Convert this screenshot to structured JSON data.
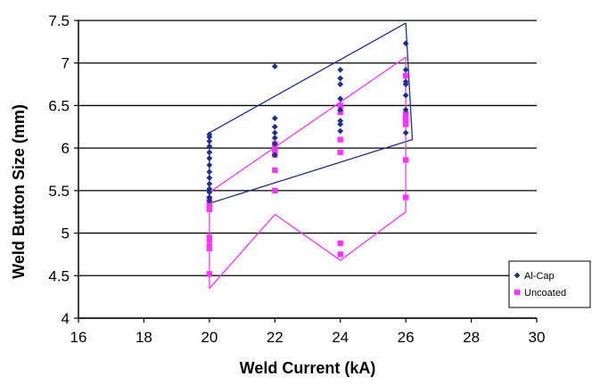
{
  "chart_data": {
    "type": "scatter",
    "xlabel": "Weld Current (kA)",
    "ylabel": "Weld Button Size (mm)",
    "xlim": [
      16,
      30
    ],
    "ylim": [
      4,
      7.5
    ],
    "x_ticks": [
      "16",
      "18",
      "20",
      "22",
      "24",
      "26",
      "28",
      "30"
    ],
    "y_ticks": [
      "4",
      "4.5",
      "5",
      "5.5",
      "6",
      "6.5",
      "7",
      "7.5"
    ],
    "grid": "horizontal",
    "legend_position": "bottom-right",
    "series": [
      {
        "name": "Al-Cap",
        "color": "#1f2f8f",
        "marker": "diamond",
        "points": [
          [
            20,
            5.38
          ],
          [
            20,
            5.42
          ],
          [
            20,
            5.48
          ],
          [
            20,
            5.52
          ],
          [
            20,
            5.58
          ],
          [
            20,
            5.65
          ],
          [
            20,
            5.72
          ],
          [
            20,
            5.8
          ],
          [
            20,
            5.88
          ],
          [
            20,
            5.95
          ],
          [
            20,
            6.02
          ],
          [
            20,
            6.08
          ],
          [
            20,
            6.13
          ],
          [
            20,
            6.16
          ],
          [
            22,
            5.92
          ],
          [
            22,
            6.05
          ],
          [
            22,
            6.12
          ],
          [
            22,
            6.18
          ],
          [
            22,
            6.25
          ],
          [
            22,
            6.35
          ],
          [
            22,
            6.96
          ],
          [
            24,
            6.2
          ],
          [
            24,
            6.28
          ],
          [
            24,
            6.32
          ],
          [
            24,
            6.45
          ],
          [
            24,
            6.58
          ],
          [
            24,
            6.75
          ],
          [
            24,
            6.82
          ],
          [
            24,
            6.92
          ],
          [
            26,
            6.18
          ],
          [
            26,
            6.45
          ],
          [
            26,
            6.62
          ],
          [
            26,
            6.75
          ],
          [
            26,
            6.78
          ],
          [
            26,
            6.92
          ],
          [
            26,
            7.23
          ]
        ],
        "envelope": [
          [
            20,
            6.18
          ],
          [
            26,
            7.47
          ],
          [
            26.2,
            6.1
          ],
          [
            20,
            5.35
          ]
        ]
      },
      {
        "name": "Uncoated",
        "color": "#ff33ff",
        "marker": "square",
        "points": [
          [
            20,
            4.52
          ],
          [
            20,
            4.82
          ],
          [
            20,
            4.85
          ],
          [
            20,
            4.92
          ],
          [
            20,
            4.95
          ],
          [
            20,
            5.28
          ],
          [
            20,
            5.32
          ],
          [
            20,
            5.35
          ],
          [
            20,
            5.4
          ],
          [
            22,
            5.5
          ],
          [
            22,
            5.74
          ],
          [
            22,
            5.92
          ],
          [
            22,
            5.98
          ],
          [
            22,
            6.02
          ],
          [
            22,
            6.05
          ],
          [
            24,
            4.75
          ],
          [
            24,
            4.88
          ],
          [
            24,
            5.95
          ],
          [
            24,
            6.1
          ],
          [
            24,
            6.42
          ],
          [
            24,
            6.5
          ],
          [
            26,
            5.42
          ],
          [
            26,
            5.86
          ],
          [
            26,
            6.28
          ],
          [
            26,
            6.32
          ],
          [
            26,
            6.35
          ],
          [
            26,
            6.4
          ],
          [
            26,
            6.85
          ]
        ],
        "envelope": [
          [
            20,
            5.48
          ],
          [
            26,
            7.07
          ],
          [
            26,
            5.25
          ],
          [
            24,
            4.68
          ],
          [
            22,
            5.22
          ],
          [
            20,
            4.35
          ]
        ]
      }
    ]
  }
}
